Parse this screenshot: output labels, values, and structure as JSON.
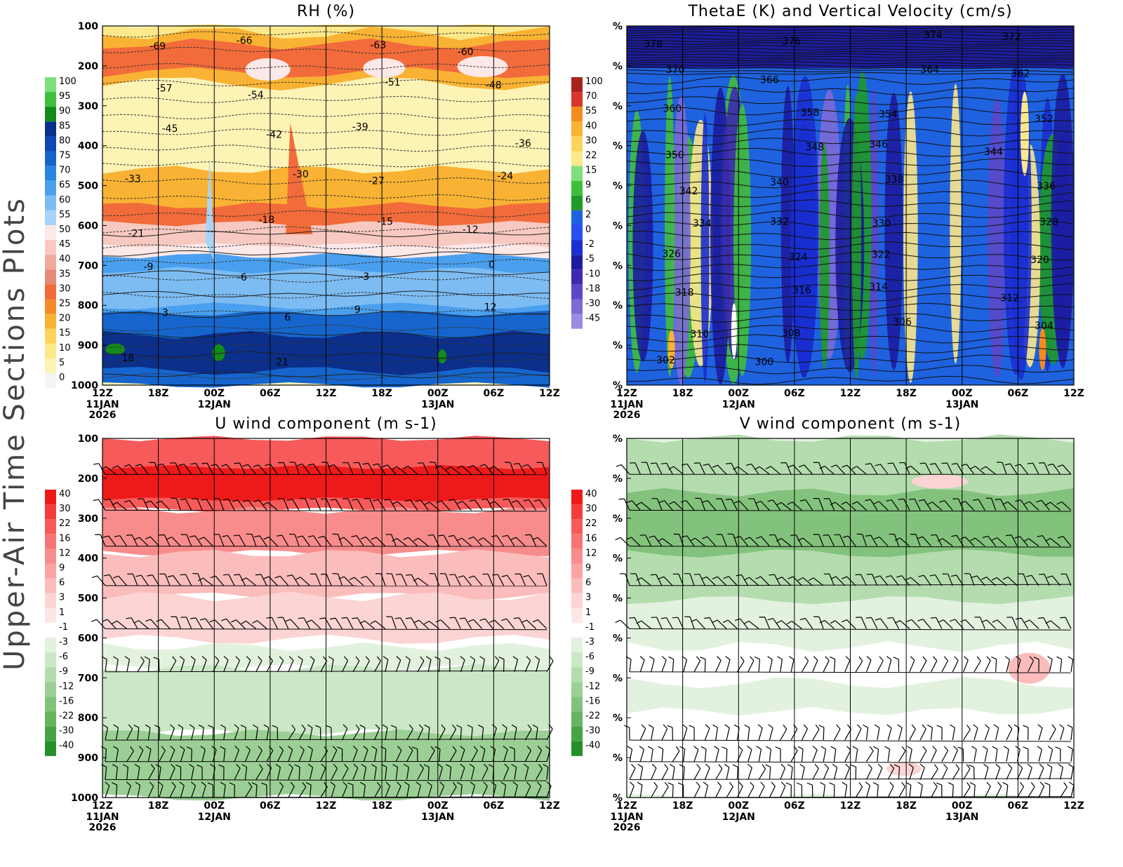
{
  "figure": {
    "side_title": "Upper-Air Time Sections Plots"
  },
  "chart_data": [
    {
      "id": "rh",
      "type": "heatmap",
      "title": "RH (%)",
      "x_ticks": [
        "12Z",
        "18Z",
        "00Z",
        "06Z",
        "12Z",
        "18Z",
        "00Z",
        "06Z",
        "12Z"
      ],
      "date_labels": [
        {
          "at": 0,
          "lines": [
            "11JAN",
            "2026"
          ]
        },
        {
          "at": 2,
          "lines": [
            "12JAN"
          ]
        },
        {
          "at": 6,
          "lines": [
            "13JAN"
          ]
        }
      ],
      "y_ticks": [
        "100",
        "200",
        "300",
        "400",
        "500",
        "600",
        "700",
        "800",
        "900",
        "1000"
      ],
      "colorbar_labels": [
        "100",
        "95",
        "90",
        "85",
        "80",
        "75",
        "70",
        "65",
        "60",
        "55",
        "50",
        "45",
        "40",
        "35",
        "30",
        "25",
        "20",
        "15",
        "10",
        "5",
        "0"
      ],
      "colorbar_colors": [
        "#7ee07a",
        "#3fbf3c",
        "#138a1a",
        "#0b2f8a",
        "#0d47b5",
        "#1565cc",
        "#2a85e0",
        "#4aa0ee",
        "#7cbcf3",
        "#a9d4f7",
        "#fde8e8",
        "#f7c9c0",
        "#f0a99a",
        "#e8897a",
        "#f26b3a",
        "#f58a2a",
        "#f9b233",
        "#fcd45a",
        "#fde88a",
        "#fdf3b5",
        "#f4f4f4"
      ],
      "contour_labels": [
        "-69",
        "-66",
        "-63",
        "-60",
        "-57",
        "-54",
        "-51",
        "-48",
        "-45",
        "-42",
        "-39",
        "-36",
        "-33",
        "-30",
        "-27",
        "-24",
        "-21",
        "-18",
        "-15",
        "-12",
        "-9",
        "-6",
        "-3",
        "0",
        "3",
        "6",
        "9",
        "12",
        "18",
        "21"
      ]
    },
    {
      "id": "thetae",
      "type": "heatmap",
      "title": "ThetaE (K) and Vertical Velocity (cm/s)",
      "x_ticks": [
        "12Z",
        "18Z",
        "00Z",
        "06Z",
        "12Z",
        "18Z",
        "00Z",
        "06Z",
        "12Z"
      ],
      "date_labels": [
        {
          "at": 0,
          "lines": [
            "11JAN",
            "2026"
          ]
        },
        {
          "at": 2,
          "lines": [
            "12JAN"
          ]
        },
        {
          "at": 6,
          "lines": [
            "13JAN"
          ]
        }
      ],
      "y_ticks": [
        "%",
        "%",
        "%",
        "%",
        "%",
        "%",
        "%",
        "%",
        "%",
        "%"
      ],
      "colorbar_labels": [
        "100",
        "70",
        "55",
        "40",
        "30",
        "22",
        "15",
        "9",
        "6",
        "2",
        "0",
        "-2",
        "-5",
        "-10",
        "-18",
        "-30",
        "-45"
      ],
      "colorbar_colors": [
        "#a8231e",
        "#d6372a",
        "#f58a1e",
        "#f9b233",
        "#fcd45a",
        "#fde88a",
        "#7ee07a",
        "#3fbf3c",
        "#1f9a28",
        "#1e62e0",
        "#2a4ff0",
        "#1a2fd0",
        "#1c1c9e",
        "#3d2ab0",
        "#5a48c8",
        "#7c6ad6",
        "#9a8ce2"
      ],
      "contour_labels": [
        "378",
        "376",
        "374",
        "372",
        "370",
        "366",
        "364",
        "362",
        "360",
        "358",
        "354",
        "352",
        "350",
        "348",
        "346",
        "344",
        "342",
        "340",
        "338",
        "336",
        "334",
        "332",
        "330",
        "328",
        "326",
        "324",
        "322",
        "320",
        "318",
        "316",
        "314",
        "312",
        "310",
        "308",
        "306",
        "304",
        "302",
        "300"
      ]
    },
    {
      "id": "u",
      "type": "heatmap",
      "title": "U wind component (m s-1)",
      "x_ticks": [
        "12Z",
        "18Z",
        "00Z",
        "06Z",
        "12Z",
        "18Z",
        "00Z",
        "06Z",
        "12Z"
      ],
      "date_labels": [
        {
          "at": 0,
          "lines": [
            "11JAN",
            "2026"
          ]
        },
        {
          "at": 2,
          "lines": [
            "12JAN"
          ]
        },
        {
          "at": 6,
          "lines": [
            "13JAN"
          ]
        }
      ],
      "y_ticks": [
        "100",
        "200",
        "300",
        "400",
        "500",
        "600",
        "700",
        "800",
        "900",
        "1000"
      ],
      "colorbar_labels": [
        "40",
        "30",
        "22",
        "16",
        "12",
        "9",
        "6",
        "3",
        "1",
        "-1",
        "-3",
        "-6",
        "-9",
        "-12",
        "-16",
        "-22",
        "-30",
        "-40"
      ],
      "colorbar_colors": [
        "#ee1a1a",
        "#f43c3c",
        "#f65a5a",
        "#f77474",
        "#f88c8c",
        "#faa4a4",
        "#fbbcbc",
        "#fcd4d4",
        "#fde6e6",
        "#ffffff",
        "#e2f2df",
        "#cbe7c6",
        "#b4dcae",
        "#9ccf95",
        "#83c27c",
        "#67b461",
        "#47a444",
        "#23902a"
      ]
    },
    {
      "id": "v",
      "type": "heatmap",
      "title": "V wind component (m s-1)",
      "x_ticks": [
        "12Z",
        "18Z",
        "00Z",
        "06Z",
        "12Z",
        "18Z",
        "00Z",
        "06Z",
        "12Z"
      ],
      "date_labels": [
        {
          "at": 0,
          "lines": [
            "11JAN",
            "2026"
          ]
        },
        {
          "at": 2,
          "lines": [
            "12JAN"
          ]
        },
        {
          "at": 6,
          "lines": [
            "13JAN"
          ]
        }
      ],
      "y_ticks": [
        "%",
        "%",
        "%",
        "%",
        "%",
        "%",
        "%",
        "%",
        "%",
        "%"
      ],
      "colorbar_labels": [
        "40",
        "30",
        "22",
        "16",
        "12",
        "9",
        "6",
        "3",
        "1",
        "-1",
        "-3",
        "-6",
        "-9",
        "-12",
        "-16",
        "-22",
        "-30",
        "-40"
      ],
      "colorbar_colors": [
        "#ee1a1a",
        "#f43c3c",
        "#f65a5a",
        "#f77474",
        "#f88c8c",
        "#faa4a4",
        "#fbbcbc",
        "#fcd4d4",
        "#fde6e6",
        "#ffffff",
        "#e2f2df",
        "#cbe7c6",
        "#b4dcae",
        "#9ccf95",
        "#83c27c",
        "#67b461",
        "#47a444",
        "#23902a"
      ]
    }
  ]
}
